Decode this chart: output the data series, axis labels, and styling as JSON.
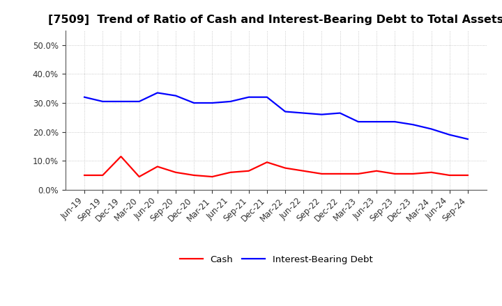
{
  "title": "[7509]  Trend of Ratio of Cash and Interest-Bearing Debt to Total Assets",
  "x_labels": [
    "Jun-19",
    "Sep-19",
    "Dec-19",
    "Mar-20",
    "Jun-20",
    "Sep-20",
    "Dec-20",
    "Mar-21",
    "Jun-21",
    "Sep-21",
    "Dec-21",
    "Mar-22",
    "Jun-22",
    "Sep-22",
    "Dec-22",
    "Mar-23",
    "Jun-23",
    "Sep-23",
    "Dec-23",
    "Mar-24",
    "Jun-24",
    "Sep-24"
  ],
  "cash": [
    5.0,
    5.0,
    11.5,
    4.5,
    8.0,
    6.0,
    5.0,
    4.5,
    6.0,
    6.5,
    9.5,
    7.5,
    6.5,
    5.5,
    5.5,
    5.5,
    6.5,
    5.5,
    5.5,
    6.0,
    5.0,
    5.0
  ],
  "debt": [
    32.0,
    30.5,
    30.5,
    30.5,
    33.5,
    32.5,
    30.0,
    30.0,
    30.5,
    32.0,
    32.0,
    27.0,
    26.5,
    26.0,
    26.5,
    23.5,
    23.5,
    23.5,
    22.5,
    21.0,
    19.0,
    17.5
  ],
  "cash_color": "#FF0000",
  "debt_color": "#0000FF",
  "background_color": "#FFFFFF",
  "plot_bg_color": "#FFFFFF",
  "grid_color": "#BBBBBB",
  "ylim": [
    0,
    55
  ],
  "yticks": [
    0.0,
    10.0,
    20.0,
    30.0,
    40.0,
    50.0
  ],
  "ytick_labels": [
    "0.0%",
    "10.0%",
    "20.0%",
    "30.0%",
    "40.0%",
    "50.0%"
  ],
  "legend_cash": "Cash",
  "legend_debt": "Interest-Bearing Debt",
  "line_width": 1.6,
  "title_fontsize": 11.5,
  "tick_fontsize": 8.5,
  "legend_fontsize": 9.5
}
